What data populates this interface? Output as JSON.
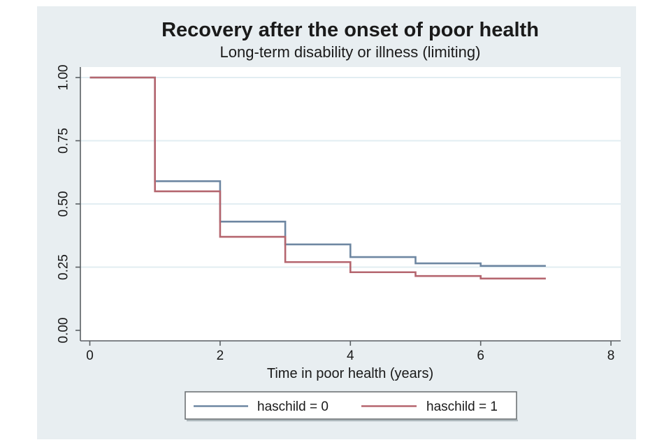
{
  "figure": {
    "style": {
      "figure_background": "#e8eef1",
      "plot_background": "#ffffff",
      "grid_color": "#e2edf2",
      "axis_color": "#5a5f63",
      "tick_color": "#5a5f63",
      "title_color": "#2b3a69",
      "text_color": "#1a1a1a",
      "legend_background": "#ffffff",
      "legend_border": "#6e7376",
      "legend_shadow": "#aeb8bc"
    }
  },
  "chart_data": {
    "type": "line",
    "subtype": "kaplan-meier-step",
    "title": "Recovery after the onset of poor health",
    "subtitle": "Long-term disability or illness (limiting)",
    "xlabel": "Time in poor health (years)",
    "ylabel": "",
    "xlim": [
      0,
      8
    ],
    "ylim": [
      0.0,
      1.0
    ],
    "xticks": [
      0,
      2,
      4,
      6,
      8
    ],
    "ytick_labels": [
      "0.00",
      "0.25",
      "0.50",
      "0.75",
      "1.00"
    ],
    "ytick_values": [
      0.0,
      0.25,
      0.5,
      0.75,
      1.0
    ],
    "grid": "horizontal",
    "grid_at": [
      0.25,
      0.5,
      0.75,
      1.0
    ],
    "legend_position": "bottom",
    "series": [
      {
        "name": "haschild = 0",
        "color": "#6e87a2",
        "step_x": [
          0,
          1,
          2,
          3,
          4,
          5,
          6
        ],
        "step_values": [
          1.0,
          0.59,
          0.43,
          0.34,
          0.29,
          0.265,
          0.255
        ],
        "x_end": 7
      },
      {
        "name": "haschild = 1",
        "color": "#b5666f",
        "step_x": [
          0,
          1,
          2,
          3,
          4,
          5,
          6
        ],
        "step_values": [
          1.0,
          0.55,
          0.37,
          0.27,
          0.23,
          0.215,
          0.205
        ],
        "x_end": 7
      }
    ]
  }
}
